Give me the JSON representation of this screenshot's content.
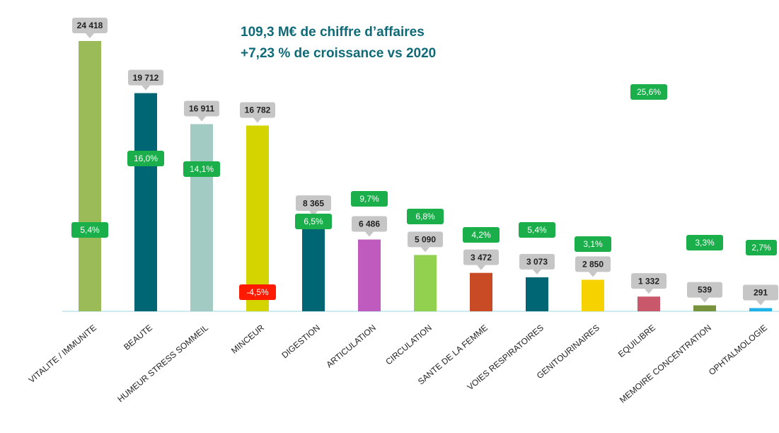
{
  "chart_data": {
    "type": "bar",
    "title": "109,3 M€ de chiffre d’affaires",
    "subtitle": "+7,23 % de croissance vs 2020",
    "categories": [
      "VITALITE / IMMUNITE",
      "BEAUTE",
      "HUMEUR STRESS SOMMEIL",
      "MINCEUR",
      "DIGESTION",
      "ARTICULATION",
      "CIRCULATION",
      "SANTE DE LA FEMME",
      "VOIES RESPIRATOIRES",
      "GENITOURINAIRES",
      "EQUILIBRE",
      "MEMOIRE CONCENTRATION",
      "OPHTALMOLOGIE"
    ],
    "values": [
      24418,
      19712,
      16911,
      16782,
      8365,
      6486,
      5090,
      3472,
      3073,
      2850,
      1332,
      539,
      291
    ],
    "value_labels": [
      "24 418",
      "19 712",
      "16 911",
      "16 782",
      "8 365",
      "6 486",
      "5 090",
      "3 472",
      "3 073",
      "2 850",
      "1 332",
      "539",
      "291"
    ],
    "growth_labels": [
      "5,4%",
      "16,0%",
      "14,1%",
      "-4,5%",
      "6,5%",
      "9,7%",
      "6,8%",
      "4,2%",
      "5,4%",
      "3,1%",
      "25,6%",
      "3,3%",
      "2,7%"
    ],
    "colors": [
      "#9bbb59",
      "#006673",
      "#a2cbc4",
      "#d4d400",
      "#006673",
      "#bf5bbf",
      "#92d050",
      "#c84b25",
      "#006673",
      "#f5d200",
      "#c9596a",
      "#77933c",
      "#1fb2e8"
    ],
    "growth_color": "#1aaf4b",
    "growth_negative_color": "#ff1a00",
    "value_label_color": "#c6c6c6"
  }
}
